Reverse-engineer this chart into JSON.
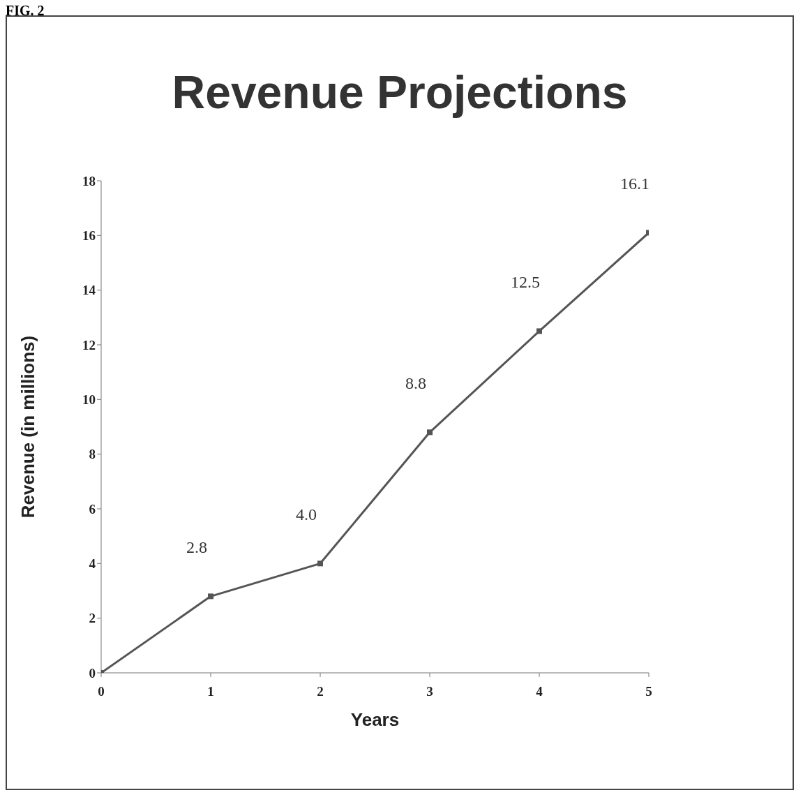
{
  "chart_data": {
    "type": "line",
    "title": "Revenue Projections",
    "xlabel": "Years",
    "ylabel": "Revenue (in millions)",
    "annotations": [
      "FIG. 2"
    ],
    "x": [
      0,
      1,
      2,
      3,
      4,
      5
    ],
    "series": [
      {
        "color": "#555555",
        "values": [
          0,
          2.8,
          4.0,
          8.8,
          12.5,
          16.1
        ],
        "value_labels": [
          null,
          "2.8",
          "4.0",
          "8.8",
          "12.5",
          "16.1"
        ]
      }
    ],
    "xlim": [
      0,
      5
    ],
    "xticks": [
      0,
      1,
      2,
      3,
      4,
      5
    ],
    "ylim": [
      0,
      18
    ],
    "yticks": [
      0,
      2,
      4,
      6,
      8,
      10,
      12,
      14,
      16,
      18
    ],
    "grid": false,
    "marker": "square",
    "line_style": "solid"
  }
}
